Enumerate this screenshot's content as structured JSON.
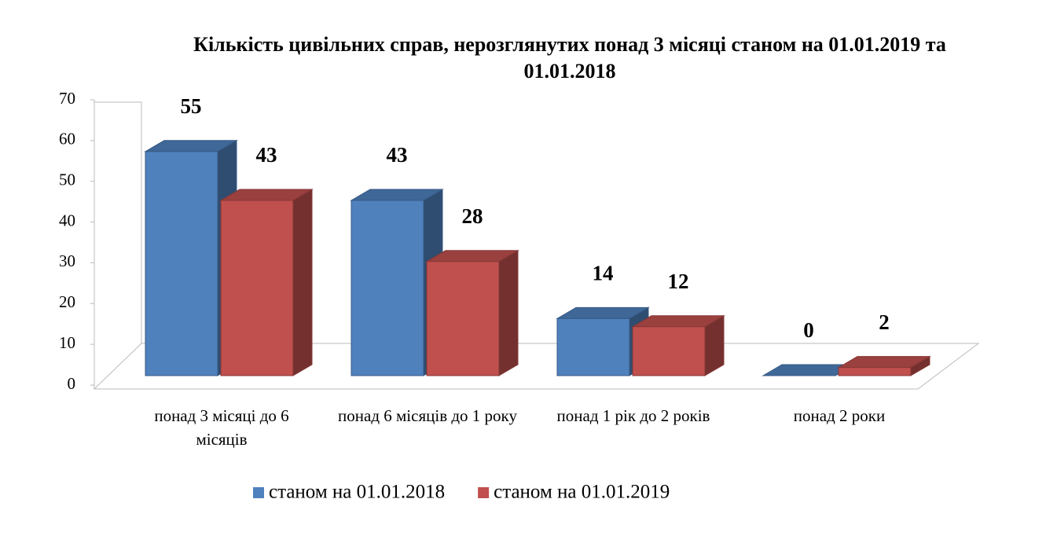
{
  "chart_data": {
    "type": "bar3d",
    "title": "Кількість цивільних справ, нерозглянутих понад 3 місяці станом на 01.01.2019 та 01.01.2018",
    "categories": [
      "понад 3 місяці до 6 місяців",
      "понад 6 місяців до 1 року",
      "понад 1 рік до 2 років",
      "понад 2 роки"
    ],
    "series": [
      {
        "name": "станом на 01.01.2018",
        "color": "#4f81bd",
        "values": [
          55,
          43,
          14,
          0
        ]
      },
      {
        "name": "станом на 01.01.2019",
        "color": "#c0504d",
        "values": [
          43,
          28,
          12,
          2
        ]
      }
    ],
    "ylim": [
      0,
      70
    ],
    "yticks": [
      0,
      10,
      20,
      30,
      40,
      50,
      60,
      70
    ],
    "legend": "bottom"
  }
}
